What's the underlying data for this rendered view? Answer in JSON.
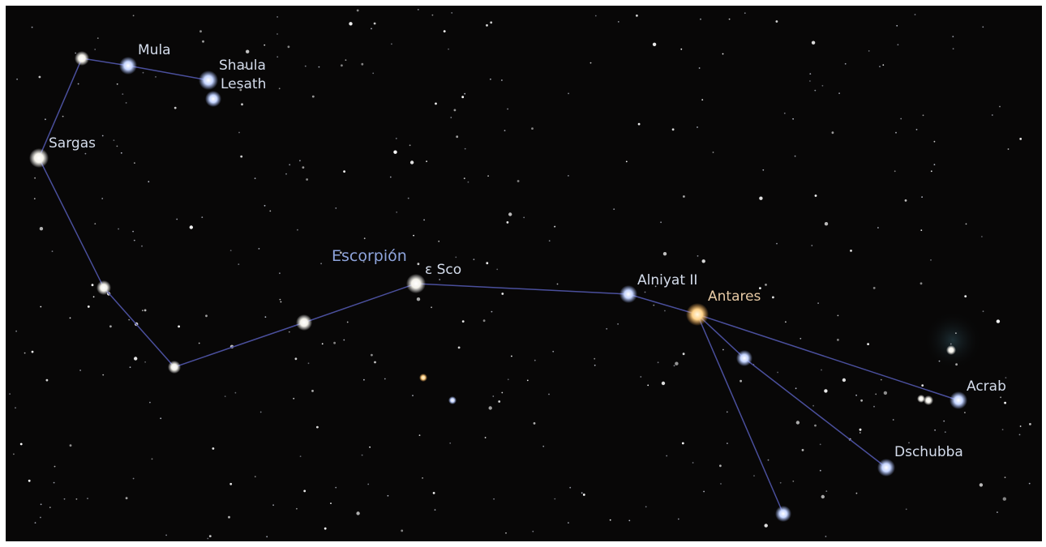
{
  "constellation": {
    "name": "Escorpión"
  },
  "stars": [
    {
      "label": "Mula"
    },
    {
      "label": "Shaula"
    },
    {
      "label": "Lesath"
    },
    {
      "label": "Sargas"
    },
    {
      "label": "ε Sco"
    },
    {
      "label": "Alniyat II"
    },
    {
      "label": "Antares"
    },
    {
      "label": "Acrab"
    },
    {
      "label": "Dschubba"
    }
  ]
}
